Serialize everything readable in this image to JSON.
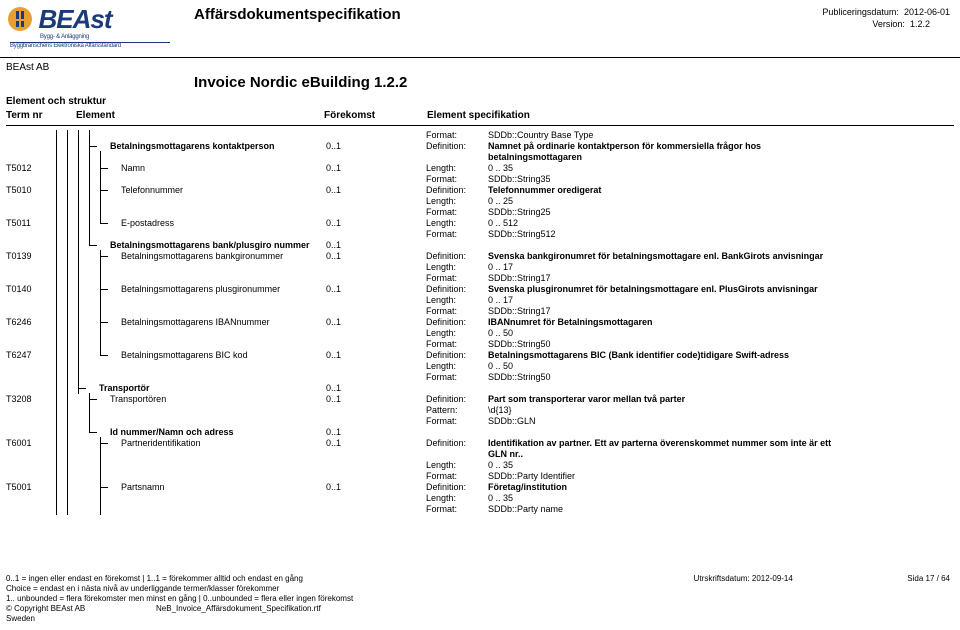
{
  "header": {
    "logo_text": "BEAst",
    "logo_sub": "Bygg- & Anläggning",
    "logo_sub2": "Byggbranschens Elektroniska Affärsstandard",
    "doc_title": "Affärsdokumentspecifikation",
    "pub_label": "Publiceringsdatum:",
    "pub_date": "2012-06-01",
    "ver_label": "Version:",
    "version": "1.2.2",
    "company": "BEAst AB",
    "inv_title": "Invoice Nordic eBuilding 1.2.2",
    "struct_title": "Element och struktur",
    "col_term_nr": "Term nr",
    "col_element": "Element",
    "col_forekomst": "Förekomst",
    "col_spec": "Element specifikation"
  },
  "colors": {
    "accent": "#1a3a7a",
    "line": "#000000",
    "bg": "#ffffff"
  },
  "rows": [
    {
      "nr": "",
      "indent": 4,
      "label": "",
      "bold": false,
      "levels": [
        1,
        1,
        1,
        1
      ],
      "occ": "",
      "spec": [
        [
          "Format:",
          "SDDb::Country Base Type",
          false
        ]
      ]
    },
    {
      "nr": "",
      "indent": 4,
      "label": "Betalningsmottagarens kontaktperson",
      "bold": true,
      "levels": [
        1,
        1,
        1,
        1
      ],
      "branch": 3,
      "occ": "0..1",
      "spec": [
        [
          "Definition:",
          "Namnet på ordinarie kontaktperson för kommersiella frågor hos",
          true
        ]
      ]
    },
    {
      "nr": "",
      "indent": 4,
      "label": "",
      "bold": false,
      "levels": [
        1,
        1,
        1,
        1,
        1
      ],
      "occ": "",
      "spec": [
        [
          "",
          "betalningsmottagaren",
          true
        ]
      ]
    },
    {
      "nr": "T5012",
      "indent": 5,
      "label": "Namn",
      "bold": false,
      "levels": [
        1,
        1,
        1,
        1,
        1
      ],
      "branch": 4,
      "occ": "0..1",
      "spec": [
        [
          "Length:",
          "0  ..  35",
          false
        ]
      ]
    },
    {
      "nr": "",
      "indent": 5,
      "label": "",
      "bold": false,
      "levels": [
        1,
        1,
        1,
        1,
        1
      ],
      "occ": "",
      "spec": [
        [
          "Format:",
          "SDDb::String35",
          false
        ]
      ]
    },
    {
      "nr": "T5010",
      "indent": 5,
      "label": "Telefonnummer",
      "bold": false,
      "levels": [
        1,
        1,
        1,
        1,
        1
      ],
      "branch": 4,
      "occ": "0..1",
      "spec": [
        [
          "Definition:",
          "Telefonnummer oredigerat",
          true
        ]
      ]
    },
    {
      "nr": "",
      "indent": 5,
      "label": "",
      "bold": false,
      "levels": [
        1,
        1,
        1,
        1,
        1
      ],
      "occ": "",
      "spec": [
        [
          "Length:",
          "0  ..  25",
          false
        ]
      ]
    },
    {
      "nr": "",
      "indent": 5,
      "label": "",
      "bold": false,
      "levels": [
        1,
        1,
        1,
        1,
        1
      ],
      "occ": "",
      "spec": [
        [
          "Format:",
          "SDDb::String25",
          false
        ]
      ]
    },
    {
      "nr": "T5011",
      "indent": 5,
      "label": "E-postadress",
      "bold": false,
      "levels": [
        1,
        1,
        1,
        1,
        2
      ],
      "branch": 4,
      "occ": "0..1",
      "spec": [
        [
          "Length:",
          "0  ..  512",
          false
        ]
      ]
    },
    {
      "nr": "",
      "indent": 5,
      "label": "",
      "bold": false,
      "levels": [
        1,
        1,
        1,
        1
      ],
      "occ": "",
      "spec": [
        [
          "Format:",
          "SDDb::String512",
          false
        ]
      ]
    },
    {
      "nr": "",
      "indent": 4,
      "label": "Betalningsmottagarens  bank/plusgiro nummer",
      "bold": true,
      "levels": [
        1,
        1,
        1,
        2
      ],
      "branch": 3,
      "occ": "0..1",
      "spec": []
    },
    {
      "nr": "T0139",
      "indent": 5,
      "label": "Betalningsmottagarens bankgironummer",
      "bold": false,
      "levels": [
        1,
        1,
        1,
        0,
        1
      ],
      "branch": 4,
      "occ": "0..1",
      "spec": [
        [
          "Definition:",
          "Svenska bankgironumret för betalningsmottagare enl. BankGirots anvisningar",
          true
        ]
      ]
    },
    {
      "nr": "",
      "indent": 5,
      "label": "",
      "bold": false,
      "levels": [
        1,
        1,
        1,
        0,
        1
      ],
      "occ": "",
      "spec": [
        [
          "Length:",
          "0  ..  17",
          false
        ]
      ]
    },
    {
      "nr": "",
      "indent": 5,
      "label": "",
      "bold": false,
      "levels": [
        1,
        1,
        1,
        0,
        1
      ],
      "occ": "",
      "spec": [
        [
          "Format:",
          "SDDb::String17",
          false
        ]
      ]
    },
    {
      "nr": "T0140",
      "indent": 5,
      "label": "Betalningsmottagarens plusgironummer",
      "bold": false,
      "levels": [
        1,
        1,
        1,
        0,
        1
      ],
      "branch": 4,
      "occ": "0..1",
      "spec": [
        [
          "Definition:",
          "Svenska plusgironumret för betalningsmottagare enl. PlusGirots anvisningar",
          true
        ]
      ]
    },
    {
      "nr": "",
      "indent": 5,
      "label": "",
      "bold": false,
      "levels": [
        1,
        1,
        1,
        0,
        1
      ],
      "occ": "",
      "spec": [
        [
          "Length:",
          "0  ..  17",
          false
        ]
      ]
    },
    {
      "nr": "",
      "indent": 5,
      "label": "",
      "bold": false,
      "levels": [
        1,
        1,
        1,
        0,
        1
      ],
      "occ": "",
      "spec": [
        [
          "Format:",
          "SDDb::String17",
          false
        ]
      ]
    },
    {
      "nr": "T6246",
      "indent": 5,
      "label": "Betalningsmottagarens IBANnummer",
      "bold": false,
      "levels": [
        1,
        1,
        1,
        0,
        1
      ],
      "branch": 4,
      "occ": "0..1",
      "spec": [
        [
          "Definition:",
          "IBANnumret för Betalningsmottagaren",
          true
        ]
      ]
    },
    {
      "nr": "",
      "indent": 5,
      "label": "",
      "bold": false,
      "levels": [
        1,
        1,
        1,
        0,
        1
      ],
      "occ": "",
      "spec": [
        [
          "Length:",
          "0  ..  50",
          false
        ]
      ]
    },
    {
      "nr": "",
      "indent": 5,
      "label": "",
      "bold": false,
      "levels": [
        1,
        1,
        1,
        0,
        1
      ],
      "occ": "",
      "spec": [
        [
          "Format:",
          "SDDb::String50",
          false
        ]
      ]
    },
    {
      "nr": "T6247",
      "indent": 5,
      "label": "Betalningsmottagarens BIC kod",
      "bold": false,
      "levels": [
        1,
        1,
        1,
        0,
        2
      ],
      "branch": 4,
      "occ": "0..1",
      "spec": [
        [
          "Definition:",
          "Betalningsmottagarens BIC (Bank identifier code)tidigare Swift-adress",
          true
        ]
      ]
    },
    {
      "nr": "",
      "indent": 5,
      "label": "",
      "bold": false,
      "levels": [
        1,
        1,
        1
      ],
      "occ": "",
      "spec": [
        [
          "Length:",
          "0  ..  50",
          false
        ]
      ]
    },
    {
      "nr": "",
      "indent": 5,
      "label": "",
      "bold": false,
      "levels": [
        1,
        1,
        1
      ],
      "occ": "",
      "spec": [
        [
          "Format:",
          "SDDb::String50",
          false
        ]
      ]
    },
    {
      "nr": "",
      "indent": 3,
      "label": "Transportör",
      "bold": true,
      "levels": [
        1,
        1,
        1
      ],
      "branch": 2,
      "occ": "0..1",
      "spec": []
    },
    {
      "nr": "T3208",
      "indent": 4,
      "label": "Transportören",
      "bold": false,
      "levels": [
        1,
        1,
        0,
        1
      ],
      "branch": 3,
      "occ": "0..1",
      "spec": [
        [
          "Definition:",
          "Part som transporterar varor mellan två parter",
          true
        ]
      ]
    },
    {
      "nr": "",
      "indent": 4,
      "label": "",
      "bold": false,
      "levels": [
        1,
        1,
        0,
        1
      ],
      "occ": "",
      "spec": [
        [
          "Pattern:",
          "\\d{13}",
          false
        ]
      ]
    },
    {
      "nr": "",
      "indent": 4,
      "label": "",
      "bold": false,
      "levels": [
        1,
        1,
        0,
        1
      ],
      "occ": "",
      "spec": [
        [
          "Format:",
          "SDDb::GLN",
          false
        ]
      ]
    },
    {
      "nr": "",
      "indent": 4,
      "label": "Id nummer/Namn och adress",
      "bold": true,
      "levels": [
        1,
        1,
        0,
        2
      ],
      "branch": 3,
      "occ": "0..1",
      "spec": []
    },
    {
      "nr": "T6001",
      "indent": 5,
      "label": "Partneridentifikation",
      "bold": false,
      "levels": [
        1,
        1,
        0,
        0,
        1
      ],
      "branch": 4,
      "occ": "0..1",
      "spec": [
        [
          "Definition:",
          "Identifikation av partner. Ett av parterna överenskommet nummer som inte är ett",
          true
        ]
      ]
    },
    {
      "nr": "",
      "indent": 5,
      "label": "",
      "bold": false,
      "levels": [
        1,
        1,
        0,
        0,
        1
      ],
      "occ": "",
      "spec": [
        [
          "",
          "GLN nr..",
          true
        ]
      ]
    },
    {
      "nr": "",
      "indent": 5,
      "label": "",
      "bold": false,
      "levels": [
        1,
        1,
        0,
        0,
        1
      ],
      "occ": "",
      "spec": [
        [
          "Length:",
          "0  ..  35",
          false
        ]
      ]
    },
    {
      "nr": "",
      "indent": 5,
      "label": "",
      "bold": false,
      "levels": [
        1,
        1,
        0,
        0,
        1
      ],
      "occ": "",
      "spec": [
        [
          "Format:",
          "SDDb::Party Identifier",
          false
        ]
      ]
    },
    {
      "nr": "T5001",
      "indent": 5,
      "label": "Partsnamn",
      "bold": false,
      "levels": [
        1,
        1,
        0,
        0,
        1
      ],
      "branch": 4,
      "occ": "0..1",
      "spec": [
        [
          "Definition:",
          "Företag/institution",
          true
        ]
      ]
    },
    {
      "nr": "",
      "indent": 5,
      "label": "",
      "bold": false,
      "levels": [
        1,
        1,
        0,
        0,
        1
      ],
      "occ": "",
      "spec": [
        [
          "Length:",
          "0  ..  35",
          false
        ]
      ]
    },
    {
      "nr": "",
      "indent": 5,
      "label": "",
      "bold": false,
      "levels": [
        1,
        1,
        0,
        0,
        1
      ],
      "occ": "",
      "spec": [
        [
          "Format:",
          "SDDb::Party name",
          false
        ]
      ]
    }
  ],
  "footer": {
    "l1": "0..1 = ingen eller endast en förekomst | 1..1 = förekommer alltid och endast en gång",
    "l2": "Choice = endast en i nästa nivå av underliggande termer/klasser förekommer",
    "l3": "1.. unbounded = flera förekomster men minst en gång | 0..unbounded = flera eller ingen förekomst",
    "l4": "© Copyright BEAst AB",
    "l5": "Sweden",
    "mid": "NeB_Invoice_Affärsdokument_Specifikation.rtf",
    "r1": "Utrskriftsdatum: 2012-09-14",
    "r2": "Sida    17   /   64"
  }
}
